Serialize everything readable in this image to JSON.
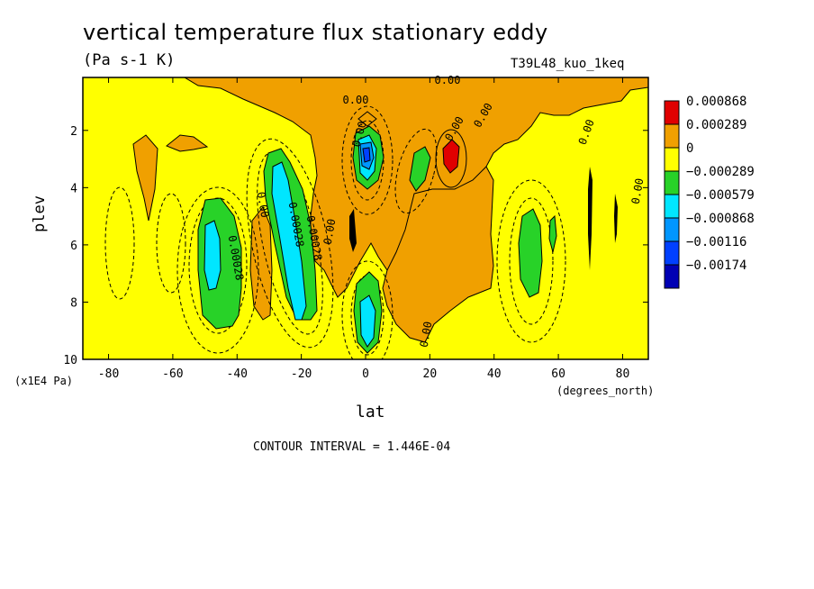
{
  "chart_data": {
    "type": "heatmap",
    "title": "vertical temperature flux stationary eddy",
    "units": "(Pa s-1 K)",
    "run_label": "T39L48_kuo_1keq",
    "xlabel": "lat",
    "x_unit": "(degrees_north)",
    "ylabel": "plev",
    "y_unit": "(x1E4 Pa)",
    "contour_interval": "CONTOUR INTERVAL = 1.446E-04",
    "xlim": [
      -88,
      88
    ],
    "ylim": [
      10,
      0.15
    ],
    "x_ticks": [
      "-80",
      "-60",
      "-40",
      "-20",
      "0",
      "20",
      "40",
      "60",
      "80"
    ],
    "y_ticks": [
      "2",
      "4",
      "6",
      "8",
      "10"
    ],
    "legend": {
      "labels": [
        "0.000868",
        "0.000289",
        "0",
        "−0.000289",
        "−0.000579",
        "−0.000868",
        "−0.00116",
        "−0.00174"
      ],
      "colors": [
        "#e00000",
        "#f0a000",
        "#ffff00",
        "#28d228",
        "#00e6ff",
        "#0096ff",
        "#0040ff",
        "#0000b4"
      ]
    },
    "contour_labels": [
      "0.00",
      "0.00",
      "0.00",
      "0.00",
      "0.00",
      "0.00",
      "0.00",
      "0.00",
      "0.00",
      "0.00",
      "0.00028",
      "0.00028",
      "0.00028"
    ],
    "fields": [
      {
        "name": "sh-midlat-negative",
        "lat": -48,
        "plev": 6.5,
        "min_level": "−0.000868"
      },
      {
        "name": "sh-subtropic-negative",
        "lat": -25,
        "plev": 5.5,
        "min_level": "−0.000868"
      },
      {
        "name": "equator-upper-negative",
        "lat": 0,
        "plev": 3.0,
        "min_level": "−0.00174"
      },
      {
        "name": "equator-lower-negative",
        "lat": 0,
        "plev": 8.7,
        "min_level": "−0.000868"
      },
      {
        "name": "nh-positive-max",
        "lat": 26,
        "plev": 2.9,
        "max_level": "0.000868"
      },
      {
        "name": "nh-midlat-negative",
        "lat": 50,
        "plev": 6.5,
        "min_level": "−0.000579"
      }
    ]
  }
}
